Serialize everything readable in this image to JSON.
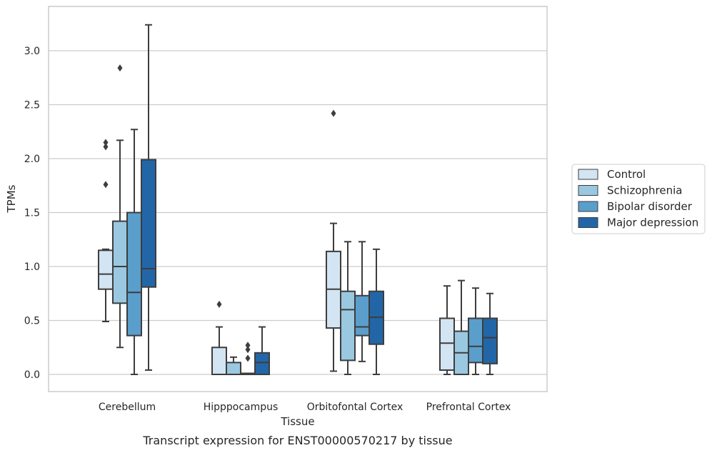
{
  "chart_data": {
    "type": "box",
    "xlabel": "Tissue",
    "ylabel": "TPMs",
    "ylim": [
      -0.16,
      3.43
    ],
    "yticks": [
      "0.0",
      "0.5",
      "1.0",
      "1.5",
      "2.0",
      "2.5",
      "3.0"
    ],
    "grid": true,
    "legend_position": "right",
    "categories": [
      "Cerebellum",
      "Hipppocampus",
      "Orbitofontal Cortex",
      "Prefrontal Cortex"
    ],
    "series": [
      {
        "name": "Control",
        "color": "#d3e4f3",
        "boxes": [
          {
            "whisker_low": 0.49,
            "q1": 0.79,
            "median": 0.93,
            "q3": 1.15,
            "whisker_high": 1.16,
            "outliers": [
              1.76,
              2.11,
              2.15
            ]
          },
          {
            "whisker_low": 0.0,
            "q1": 0.0,
            "median": 0.0,
            "q3": 0.25,
            "whisker_high": 0.44,
            "outliers": [
              0.65
            ]
          },
          {
            "whisker_low": 0.03,
            "q1": 0.43,
            "median": 0.79,
            "q3": 1.14,
            "whisker_high": 1.4,
            "outliers": [
              2.42
            ]
          },
          {
            "whisker_low": 0.0,
            "q1": 0.04,
            "median": 0.29,
            "q3": 0.52,
            "whisker_high": 0.82,
            "outliers": []
          }
        ]
      },
      {
        "name": "Schizophrenia",
        "color": "#9ac8e0",
        "boxes": [
          {
            "whisker_low": 0.25,
            "q1": 0.66,
            "median": 1.0,
            "q3": 1.42,
            "whisker_high": 2.17,
            "outliers": [
              2.84
            ]
          },
          {
            "whisker_low": 0.0,
            "q1": 0.0,
            "median": 0.0,
            "q3": 0.11,
            "whisker_high": 0.16,
            "outliers": []
          },
          {
            "whisker_low": 0.0,
            "q1": 0.13,
            "median": 0.6,
            "q3": 0.77,
            "whisker_high": 1.23,
            "outliers": []
          },
          {
            "whisker_low": 0.0,
            "q1": 0.0,
            "median": 0.2,
            "q3": 0.4,
            "whisker_high": 0.87,
            "outliers": []
          }
        ]
      },
      {
        "name": "Bipolar disorder",
        "color": "#5a9ecc",
        "boxes": [
          {
            "whisker_low": 0.0,
            "q1": 0.36,
            "median": 0.76,
            "q3": 1.5,
            "whisker_high": 2.27,
            "outliers": []
          },
          {
            "whisker_low": 0.0,
            "q1": 0.0,
            "median": 0.0,
            "q3": 0.01,
            "whisker_high": 0.01,
            "outliers": [
              0.15,
              0.23,
              0.27
            ]
          },
          {
            "whisker_low": 0.12,
            "q1": 0.36,
            "median": 0.44,
            "q3": 0.73,
            "whisker_high": 1.23,
            "outliers": []
          },
          {
            "whisker_low": 0.0,
            "q1": 0.11,
            "median": 0.26,
            "q3": 0.52,
            "whisker_high": 0.8,
            "outliers": []
          }
        ]
      },
      {
        "name": "Major depression",
        "color": "#2266a8",
        "boxes": [
          {
            "whisker_low": 0.04,
            "q1": 0.81,
            "median": 0.98,
            "q3": 1.99,
            "whisker_high": 3.24,
            "outliers": []
          },
          {
            "whisker_low": 0.0,
            "q1": 0.0,
            "median": 0.11,
            "q3": 0.2,
            "whisker_high": 0.44,
            "outliers": []
          },
          {
            "whisker_low": 0.0,
            "q1": 0.28,
            "median": 0.53,
            "q3": 0.77,
            "whisker_high": 1.16,
            "outliers": []
          },
          {
            "whisker_low": 0.0,
            "q1": 0.1,
            "median": 0.34,
            "q3": 0.52,
            "whisker_high": 0.75,
            "outliers": []
          }
        ]
      }
    ]
  },
  "caption": "Transcript expression for ENST00000570217 by tissue"
}
